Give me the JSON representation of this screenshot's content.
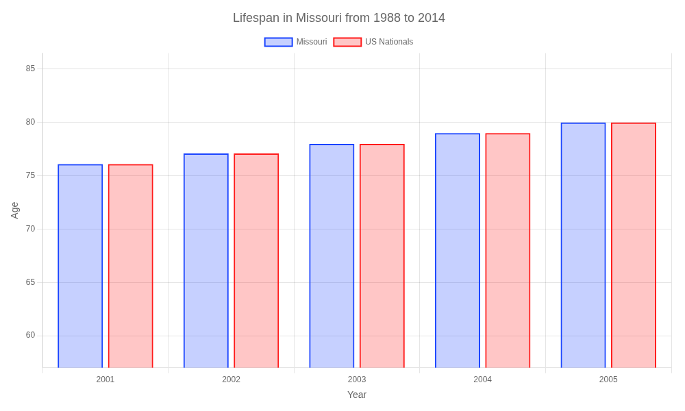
{
  "chart_data": {
    "type": "bar",
    "title": "Lifespan in Missouri from 1988 to 2014",
    "x_label": "Year",
    "y_label": "Age",
    "categories": [
      "2001",
      "2002",
      "2003",
      "2004",
      "2005"
    ],
    "series": [
      {
        "name": "Missouri",
        "color": "#1a44ff",
        "values": [
          76.1,
          77.1,
          78.0,
          79.0,
          80.0
        ]
      },
      {
        "name": "US Nationals",
        "color": "#ff1a1a",
        "values": [
          76.1,
          77.1,
          78.0,
          79.0,
          80.0
        ]
      }
    ],
    "ylim": [
      57,
      86.5
    ],
    "yticks": [
      60,
      65,
      70,
      75,
      80,
      85
    ],
    "grid": true,
    "legend": "top"
  }
}
